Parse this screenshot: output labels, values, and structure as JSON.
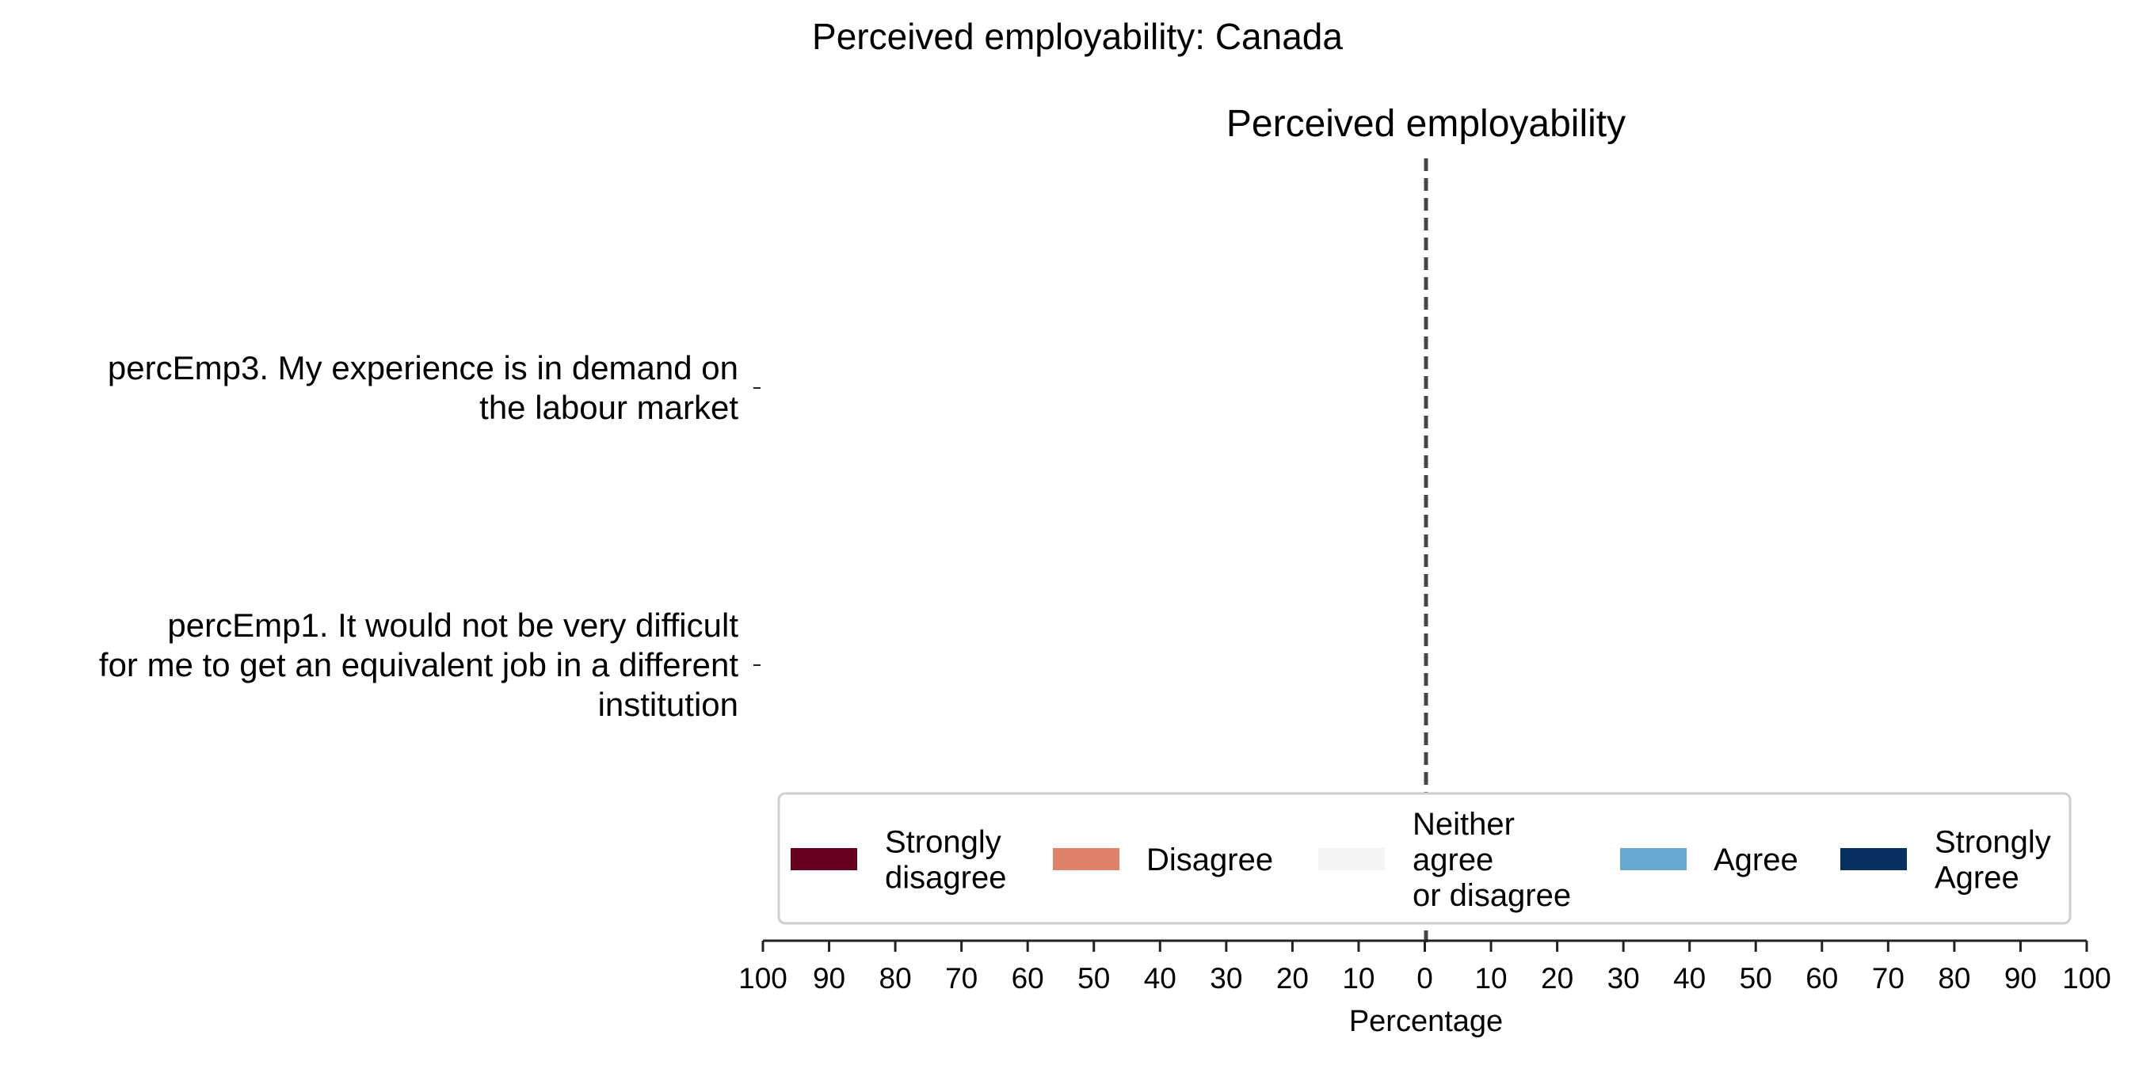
{
  "chart_data": {
    "type": "bar",
    "orientation": "horizontal-diverging-stacked",
    "title": "Perceived employability: Canada",
    "subtitle": "Perceived employability",
    "xlabel": "Percentage",
    "xlim": [
      -100,
      100
    ],
    "x_ticks": [
      -100,
      -90,
      -80,
      -70,
      -60,
      -50,
      -40,
      -30,
      -20,
      -10,
      0,
      10,
      20,
      30,
      40,
      50,
      60,
      70,
      80,
      90,
      100
    ],
    "x_tick_labels": [
      "100",
      "90",
      "80",
      "70",
      "60",
      "50",
      "40",
      "30",
      "20",
      "10",
      "0",
      "10",
      "20",
      "30",
      "40",
      "50",
      "60",
      "70",
      "80",
      "90",
      "100"
    ],
    "categories": [
      [
        "percEmp3. My experience is in demand on",
        "the labour market"
      ],
      [
        "percEmp1. It would not be very difficult",
        "for me to get an equivalent job in a different",
        "institution"
      ]
    ],
    "series": [
      {
        "name": [
          "Strongly",
          "disagree"
        ],
        "color": "#67001f",
        "values": [
          0,
          0
        ]
      },
      {
        "name": [
          "Disagree"
        ],
        "color": "#e0826a",
        "values": [
          0,
          0
        ]
      },
      {
        "name": [
          "Neither",
          "agree",
          "or disagree"
        ],
        "color": "#f4f4f4",
        "values": [
          0,
          0
        ]
      },
      {
        "name": [
          "Agree"
        ],
        "color": "#67a9d0",
        "values": [
          0,
          0
        ]
      },
      {
        "name": [
          "Strongly",
          "Agree"
        ],
        "color": "#053061",
        "values": [
          0,
          0
        ]
      }
    ],
    "reference_line": {
      "x": 0,
      "style": "dashed",
      "color": "#444444"
    },
    "legend_placement": "bottom-center",
    "grid": false
  }
}
